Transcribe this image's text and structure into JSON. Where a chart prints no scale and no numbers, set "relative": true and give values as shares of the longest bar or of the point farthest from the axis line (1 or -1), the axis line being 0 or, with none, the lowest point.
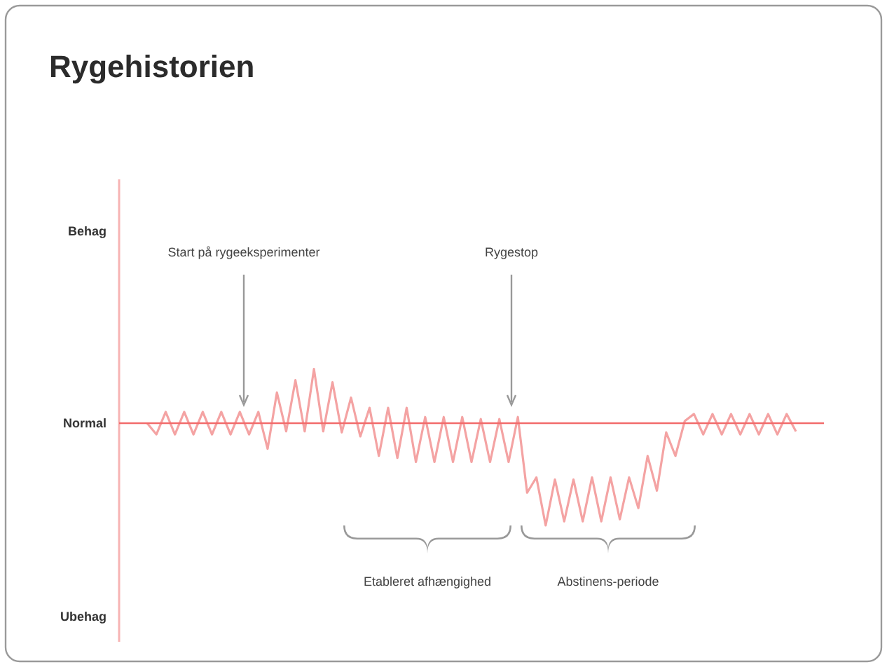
{
  "chart_data": {
    "type": "line",
    "title": "Rygehistorien",
    "relative": true,
    "categories": [
      null,
      null,
      null,
      null,
      null,
      null,
      null,
      null,
      null,
      null,
      null,
      null,
      null,
      null,
      null,
      null,
      null,
      null,
      null,
      null,
      null,
      null,
      null,
      null,
      null,
      null,
      null,
      null,
      null,
      null,
      null,
      null,
      null,
      null,
      null,
      null,
      null,
      null,
      null,
      null,
      null,
      null,
      null,
      null,
      null,
      null,
      null,
      null,
      null,
      null,
      null,
      null,
      null,
      null,
      null,
      null,
      null,
      null,
      null,
      null,
      null,
      null,
      null,
      null,
      null,
      null,
      null,
      null,
      null,
      null,
      null
    ],
    "series": [
      {
        "color": "#f4a3a3",
        "values": [
          0,
          -0.11,
          0.11,
          -0.11,
          0.11,
          -0.11,
          0.11,
          -0.11,
          0.11,
          -0.11,
          0.11,
          -0.11,
          0.11,
          -0.25,
          0.3,
          -0.08,
          0.42,
          -0.08,
          0.53,
          -0.08,
          0.4,
          -0.09,
          0.25,
          -0.13,
          0.15,
          -0.32,
          0.15,
          -0.34,
          0.15,
          -0.38,
          0.06,
          -0.38,
          0.06,
          -0.38,
          0.06,
          -0.38,
          0.04,
          -0.38,
          0.04,
          -0.38,
          0.06,
          -0.68,
          -0.53,
          -1,
          -0.55,
          -0.96,
          -0.55,
          -0.96,
          -0.53,
          -0.96,
          -0.53,
          -0.94,
          -0.53,
          -0.83,
          -0.32,
          -0.66,
          -0.09,
          -0.32,
          0.02,
          0.09,
          -0.11,
          0.09,
          -0.11,
          0.09,
          -0.11,
          0.09,
          -0.11,
          0.09,
          -0.11,
          0.09,
          -0.08
        ]
      }
    ],
    "ref_lines": [
      {
        "axis": "y",
        "value": 0,
        "label": "Normal",
        "color": "#f26b6b"
      }
    ],
    "annotations": [
      "Start på rygeeksperimenter",
      "Rygestop",
      "Etableret afhængighed",
      "Abstinens-periode",
      "Behag",
      "Ubehag"
    ]
  }
}
